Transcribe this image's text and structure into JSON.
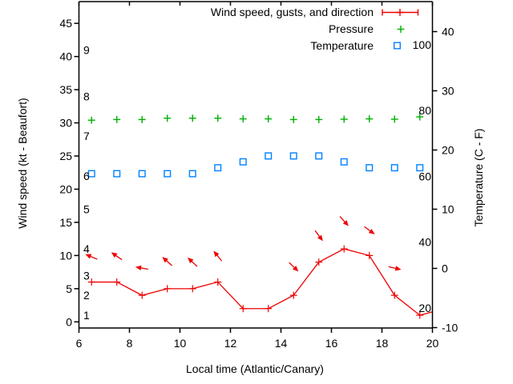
{
  "chart_data": {
    "type": "line",
    "xlabel": "Local time (Atlantic/Canary)",
    "ylabel_left": "Wind speed (kt - Beaufort)",
    "ylabel_right": "Temperature (C - F)",
    "x_range": [
      6,
      20
    ],
    "x_ticks": [
      6,
      8,
      10,
      12,
      14,
      16,
      18,
      20
    ],
    "left_axis_ticks_kt": [
      0,
      5,
      10,
      15,
      20,
      25,
      30,
      35,
      40,
      45
    ],
    "right_axis_ticks_c": [
      -10,
      0,
      10,
      20,
      30,
      40
    ],
    "grid": false,
    "beaufort_scale_labels": [
      {
        "label": "1",
        "kt": 1
      },
      {
        "label": "2",
        "kt": 4
      },
      {
        "label": "3",
        "kt": 7
      },
      {
        "label": "4",
        "kt": 11
      },
      {
        "label": "5",
        "kt": 17
      },
      {
        "label": "6",
        "kt": 22
      },
      {
        "label": "7",
        "kt": 28
      },
      {
        "label": "8",
        "kt": 34
      },
      {
        "label": "9",
        "kt": 41
      }
    ],
    "fahrenheit_scale_labels": [
      {
        "label": "20",
        "c": -6.67
      },
      {
        "label": "40",
        "c": 4.44
      },
      {
        "label": "60",
        "c": 15.56
      },
      {
        "label": "80",
        "c": 26.67
      },
      {
        "label": "100",
        "c": 37.78
      }
    ],
    "legend": {
      "position": "top-right-inside",
      "entries": [
        {
          "label": "Wind speed, gusts, and direction",
          "marker": "errorbar",
          "color": "#ee0000"
        },
        {
          "label": "Pressure",
          "marker": "plus",
          "color": "#00b000"
        },
        {
          "label": "Temperature",
          "marker": "open-square",
          "color": "#0080ff"
        }
      ]
    },
    "series": {
      "wind": {
        "name": "Wind speed, gusts, and direction",
        "color": "#ee0000",
        "x": [
          6.5,
          7.5,
          8.5,
          9.5,
          10.5,
          11.5,
          12.5,
          13.5,
          14.5,
          15.5,
          16.5,
          17.5,
          18.5,
          19.5
        ],
        "kt": [
          6,
          6,
          4,
          5,
          5,
          6,
          2,
          2,
          4,
          9,
          11,
          10,
          4,
          1
        ],
        "tail": {
          "x": 20,
          "kt": 1.5
        }
      },
      "pressure": {
        "name": "Pressure",
        "color": "#00b000",
        "axis": "unlabeled (plotted against left axis units)",
        "x": [
          6.5,
          7.5,
          8.5,
          9.5,
          10.5,
          11.5,
          12.5,
          13.5,
          14.5,
          15.5,
          16.5,
          17.5,
          18.5,
          19.5
        ],
        "value": [
          30.4,
          30.5,
          30.5,
          30.7,
          30.7,
          30.7,
          30.6,
          30.6,
          30.5,
          30.5,
          30.55,
          30.6,
          30.55,
          30.9
        ]
      },
      "temperature": {
        "name": "Temperature",
        "color": "#0080ff",
        "x": [
          6.5,
          7.5,
          8.5,
          9.5,
          10.5,
          11.5,
          12.5,
          13.5,
          14.5,
          15.5,
          16.5,
          17.5,
          18.5,
          19.5
        ],
        "c": [
          16,
          16,
          16,
          16,
          16,
          17,
          18,
          19,
          19,
          19,
          18,
          17,
          17,
          17
        ]
      },
      "gust_arrows": [
        {
          "x": 6.5,
          "kt": 9.8,
          "angle_deg": -157
        },
        {
          "x": 7.5,
          "kt": 9.9,
          "angle_deg": -145
        },
        {
          "x": 8.5,
          "kt": 8.1,
          "angle_deg": -170
        },
        {
          "x": 9.5,
          "kt": 9.1,
          "angle_deg": -138
        },
        {
          "x": 10.5,
          "kt": 9.0,
          "angle_deg": -137
        },
        {
          "x": 11.5,
          "kt": 9.9,
          "angle_deg": -129
        },
        {
          "x": 14.5,
          "kt": 8.3,
          "angle_deg": 44
        },
        {
          "x": 15.5,
          "kt": 13.0,
          "angle_deg": 53
        },
        {
          "x": 16.5,
          "kt": 15.2,
          "angle_deg": 48
        },
        {
          "x": 17.5,
          "kt": 13.8,
          "angle_deg": 36
        },
        {
          "x": 18.5,
          "kt": 8.1,
          "angle_deg": 13
        }
      ]
    },
    "colors": {
      "wind": "#ee0000",
      "pressure": "#00b000",
      "temperature": "#0080ff",
      "axis": "#000000"
    }
  }
}
